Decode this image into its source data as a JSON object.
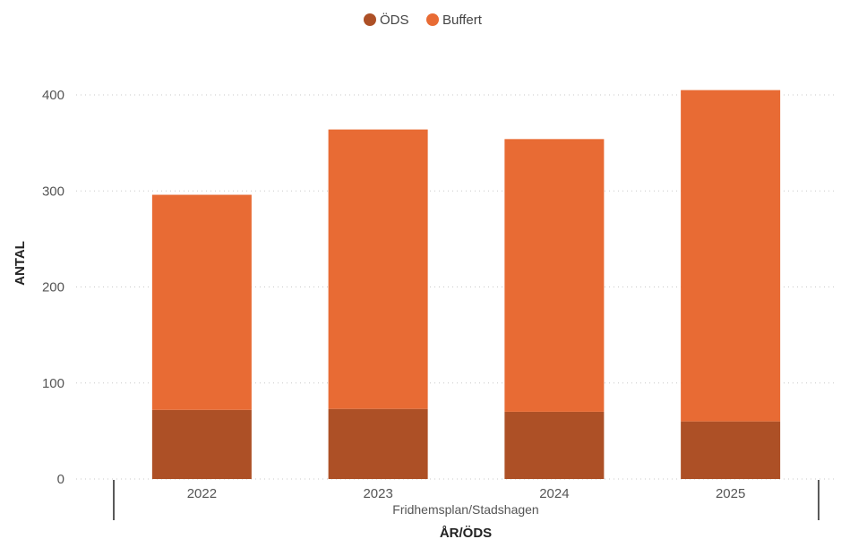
{
  "chart_data": {
    "type": "bar",
    "stacked": true,
    "categories": [
      "2022",
      "2023",
      "2024",
      "2025"
    ],
    "group_label": "Fridhemsplan/Stadshagen",
    "series": [
      {
        "name": "ÖDS",
        "color": "#AD5026",
        "values": [
          72,
          73,
          70,
          60
        ]
      },
      {
        "name": "Buffert",
        "color": "#E86B34",
        "values": [
          224,
          291,
          284,
          345
        ]
      }
    ],
    "xlabel": "ÅR/ÖDS",
    "ylabel": "ANTAL",
    "ylim": [
      0,
      400
    ],
    "yticks": [
      0,
      100,
      200,
      300,
      400
    ],
    "grid": true,
    "legend": "top-center"
  }
}
